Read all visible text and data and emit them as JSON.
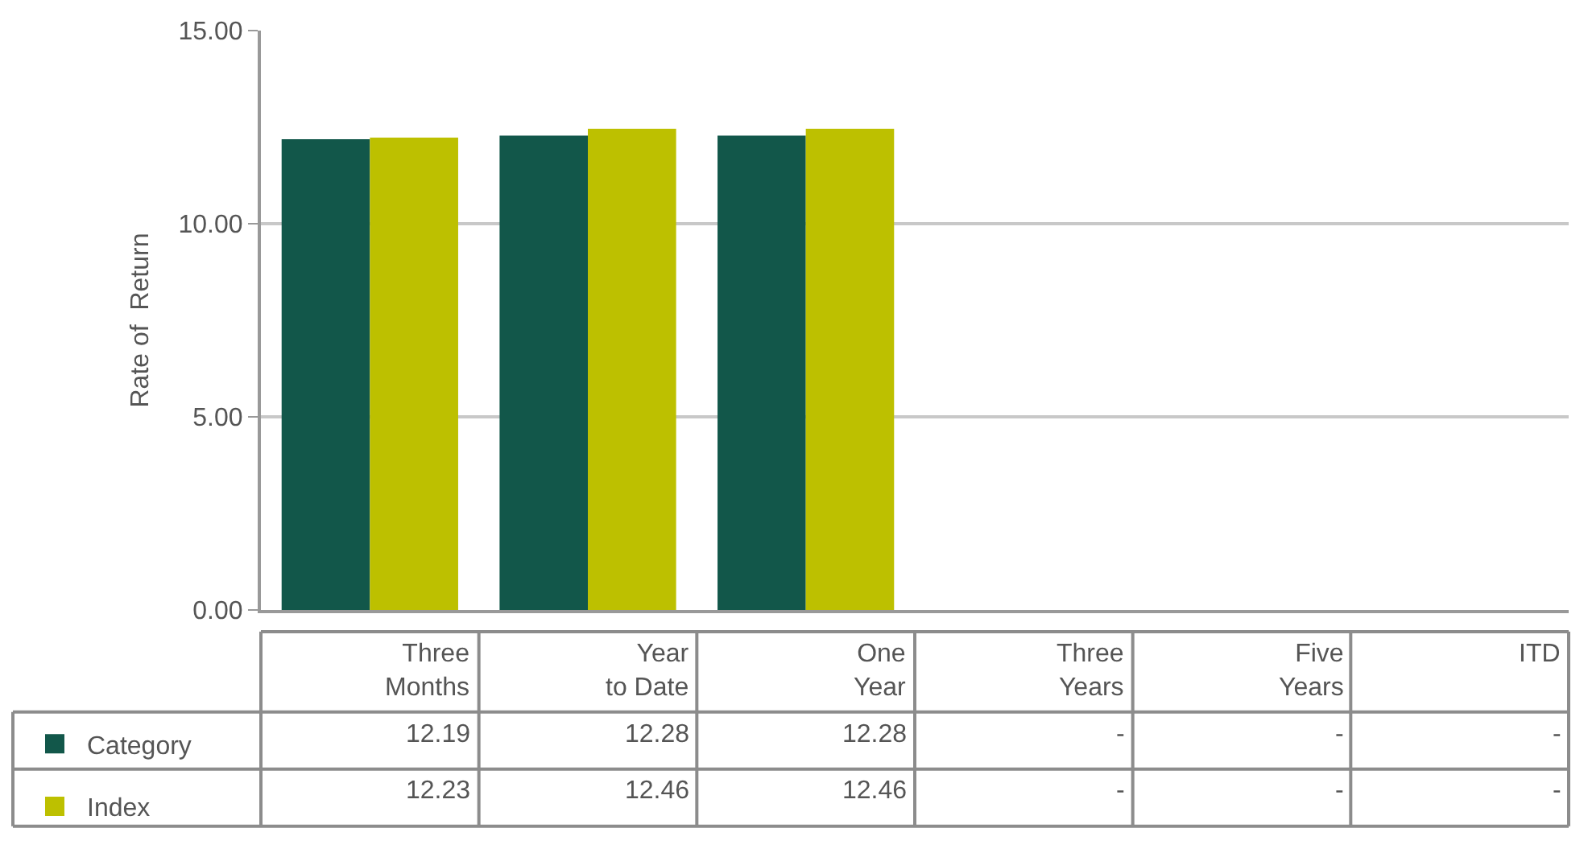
{
  "chart_data": {
    "type": "bar",
    "ylabel": "Rate of  Return",
    "categories": [
      "Three Months",
      "Year to Date",
      "One Year",
      "Three Years",
      "Five Years",
      "ITD"
    ],
    "series": [
      {
        "name": "Category",
        "color": "#12574a",
        "values": [
          12.19,
          12.28,
          12.28,
          null,
          null,
          null
        ],
        "value_labels": [
          "12.19",
          "12.28",
          "12.28",
          "-",
          "-",
          "-"
        ]
      },
      {
        "name": "Index",
        "color": "#bdc000",
        "values": [
          12.23,
          12.46,
          12.46,
          null,
          null,
          null
        ],
        "value_labels": [
          "12.23",
          "12.46",
          "12.46",
          "-",
          "-",
          "-"
        ]
      }
    ],
    "ylim": [
      0,
      15
    ],
    "yticks": [
      {
        "value": 0,
        "label": "0.00"
      },
      {
        "value": 5,
        "label": "5.00"
      },
      {
        "value": 10,
        "label": "10.00"
      },
      {
        "value": 15,
        "label": "15.00"
      }
    ],
    "grid": "y",
    "legend": "bottom left"
  }
}
